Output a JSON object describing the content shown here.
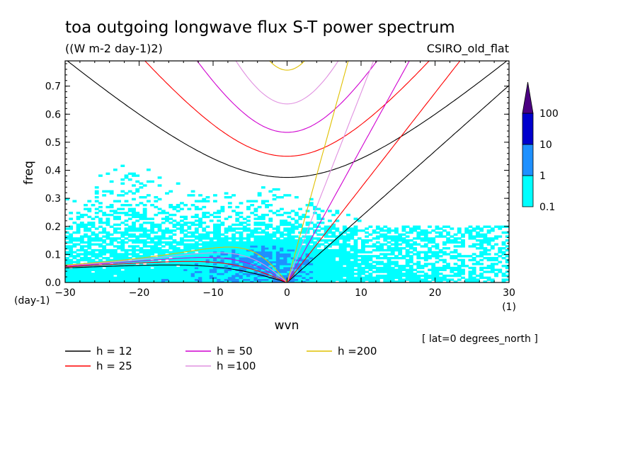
{
  "chart_data": {
    "type": "heatmap",
    "title": "toa outgoing longwave flux S-T power spectrum",
    "subtitle": "((W m-2 day-1)2)",
    "model_label": "CSIRO_old_flat",
    "xlabel": "wvn",
    "ylabel": "freq",
    "x_unit": "(1)",
    "y_unit": "(day-1)",
    "xlim": [
      -30,
      30
    ],
    "ylim": [
      0,
      0.79
    ],
    "xticks": [
      "-30",
      "-20",
      "-10",
      "0",
      "10",
      "20",
      "30"
    ],
    "yticks": [
      "0.0",
      "0.1",
      "0.2",
      "0.3",
      "0.4",
      "0.5",
      "0.6",
      "0.7"
    ],
    "colorbar": {
      "labels": [
        "0.1",
        "1",
        "10",
        "100"
      ],
      "levels": [
        0.1,
        1,
        10,
        100
      ],
      "colors": [
        "#00ffff",
        "#1e90ff",
        "#0000cd",
        "#4b0082"
      ]
    },
    "annotation": "[ lat=0 degrees_north ]",
    "dispersion_curves": [
      {
        "label": "h = 12",
        "h": 12,
        "color": "#000000"
      },
      {
        "label": "h = 25",
        "h": 25,
        "color": "#ff0000"
      },
      {
        "label": "h = 50",
        "h": 50,
        "color": "#d000d0"
      },
      {
        "label": "h =100",
        "h": 100,
        "color": "#e090e0"
      },
      {
        "label": "h =200",
        "h": 200,
        "color": "#e0c000"
      }
    ]
  }
}
